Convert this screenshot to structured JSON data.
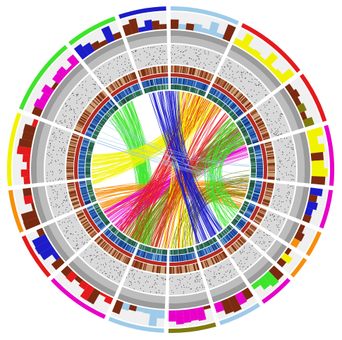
{
  "diagram": {
    "type": "circos",
    "palette": {
      "red": "#e41a1c",
      "magenta": "#e800c8",
      "yellow": "#f2f200",
      "green": "#3de52a",
      "olive": "#7f7a0a",
      "orange": "#f58f0a",
      "blue": "#1c1cc8",
      "lightblue": "#9ecbe8",
      "brown": "#7a2a10",
      "darkgreen": "#2f6a55",
      "grey": "#bdbdbd",
      "lightgrey": "#d9d9d9"
    },
    "segments": [
      {
        "id": "s1",
        "span": 32,
        "color": "#9ecbe8",
        "hist": "#9ecbe8"
      },
      {
        "id": "s2",
        "span": 34,
        "color": "#e41a1c",
        "hist": "#f2f200"
      },
      {
        "id": "s3",
        "span": 24,
        "color": "#e41a1c",
        "hist": "#7f7a0a"
      },
      {
        "id": "s4",
        "span": 28,
        "color": "#e800c8",
        "hist": "#f2f200"
      },
      {
        "id": "s5",
        "span": 18,
        "color": "#e800c8",
        "hist": "#1c1cc8"
      },
      {
        "id": "s6",
        "span": 12,
        "color": "#f58f0a",
        "hist": "#f58f0a"
      },
      {
        "id": "s7",
        "span": 10,
        "color": "#f58f0a",
        "hist": "#f2f200"
      },
      {
        "id": "s8",
        "span": 16,
        "color": "#e800c8",
        "hist": "#3de52a"
      },
      {
        "id": "s9",
        "span": 20,
        "color": "#9ecbe8",
        "hist": "#e800c8"
      },
      {
        "id": "s10",
        "span": 22,
        "color": "#7f7a0a",
        "hist": "#e800c8"
      },
      {
        "id": "s11",
        "span": 26,
        "color": "#9ecbe8",
        "hist": "#9ecbe8"
      },
      {
        "id": "s12",
        "span": 30,
        "color": "#e800c8",
        "hist": "#e41a1c"
      },
      {
        "id": "s13",
        "span": 22,
        "color": "#e41a1c",
        "hist": "#1c1cc8"
      },
      {
        "id": "s14",
        "span": 20,
        "color": "#f58f0a",
        "hist": "#e41a1c"
      },
      {
        "id": "s15",
        "span": 34,
        "color": "#f2f200",
        "hist": "#e41a1c"
      },
      {
        "id": "s16",
        "span": 36,
        "color": "#3de52a",
        "hist": "#e800c8"
      },
      {
        "id": "s17",
        "span": 24,
        "color": "#3de52a",
        "hist": "#1c1cc8"
      },
      {
        "id": "s18",
        "span": 22,
        "color": "#1c1cc8",
        "hist": "#1c1cc8"
      }
    ],
    "link_bundles": [
      {
        "color": "#3de52a",
        "from": 320,
        "to": 205,
        "count": 70
      },
      {
        "color": "#f2f200",
        "from": 270,
        "to": 30,
        "count": 70
      },
      {
        "color": "#f58f0a",
        "from": 245,
        "to": 110,
        "count": 55
      },
      {
        "color": "#e800c8",
        "from": 228,
        "to": 70,
        "count": 55
      },
      {
        "color": "#e41a1c",
        "from": 215,
        "to": 20,
        "count": 40
      },
      {
        "color": "#7f7a0a",
        "from": 200,
        "to": 60,
        "count": 55
      },
      {
        "color": "#7f7a0a",
        "from": 170,
        "to": 100,
        "count": 35
      },
      {
        "color": "#3de52a",
        "from": 60,
        "to": 130,
        "count": 40
      },
      {
        "color": "#f2f200",
        "from": 15,
        "to": 175,
        "count": 35
      },
      {
        "color": "#e41a1c",
        "from": 40,
        "to": 185,
        "count": 25
      },
      {
        "color": "#1c1cc8",
        "from": 355,
        "to": 150,
        "count": 60
      },
      {
        "color": "#9ecbe8",
        "from": 300,
        "to": 95,
        "count": 10
      }
    ]
  }
}
